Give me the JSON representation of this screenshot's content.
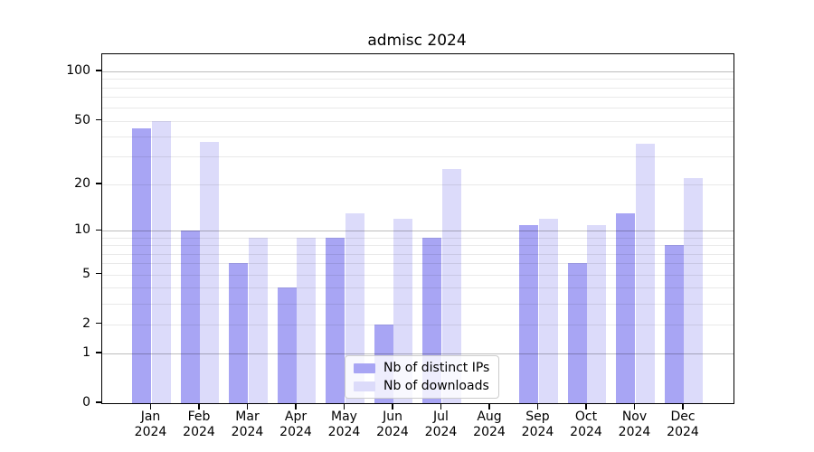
{
  "title": "admisc 2024",
  "colors": {
    "ips": "#a8a5f4",
    "downloads": "#dcdbfa",
    "major_gridline": "#bdbdbd",
    "minor_gridline": "#e9e9e9",
    "axis": "#000000"
  },
  "legend": {
    "items": [
      {
        "label": "Nb of distinct IPs",
        "series": "ips"
      },
      {
        "label": "Nb of downloads",
        "series": "downloads"
      }
    ],
    "position": "lower center"
  },
  "x_axis": {
    "year_line": "2024",
    "months": [
      "Jan",
      "Feb",
      "Mar",
      "Apr",
      "May",
      "Jun",
      "Jul",
      "Aug",
      "Sep",
      "Oct",
      "Nov",
      "Dec"
    ]
  },
  "y_axis": {
    "tick_labels": [
      "100",
      "50",
      "20",
      "10",
      "5",
      "2",
      "1",
      "0"
    ],
    "tick_values": [
      100,
      50,
      20,
      10,
      5,
      2,
      1,
      0
    ],
    "scale": "log10(value+1)",
    "major_gridlines": [
      1,
      10,
      100
    ],
    "minor_gridlines": [
      2,
      3,
      4,
      5,
      6,
      7,
      8,
      9,
      20,
      30,
      40,
      50,
      60,
      70,
      80,
      90
    ]
  },
  "chart_data": {
    "type": "bar",
    "title": "admisc 2024",
    "categories": [
      "Jan 2024",
      "Feb 2024",
      "Mar 2024",
      "Apr 2024",
      "May 2024",
      "Jun 2024",
      "Jul 2024",
      "Aug 2024",
      "Sep 2024",
      "Oct 2024",
      "Nov 2024",
      "Dec 2024"
    ],
    "series": [
      {
        "name": "Nb of distinct IPs",
        "key": "ips",
        "values": [
          45,
          10,
          6,
          4,
          9,
          2,
          9,
          0,
          11,
          6,
          13,
          8
        ]
      },
      {
        "name": "Nb of downloads",
        "key": "downloads",
        "values": [
          50,
          37,
          9,
          9,
          13,
          12,
          25,
          0,
          12,
          11,
          36,
          22
        ]
      }
    ],
    "yscale": "log1p",
    "ylim": [
      0,
      128
    ],
    "grid": true,
    "legend_position": "lower center"
  }
}
